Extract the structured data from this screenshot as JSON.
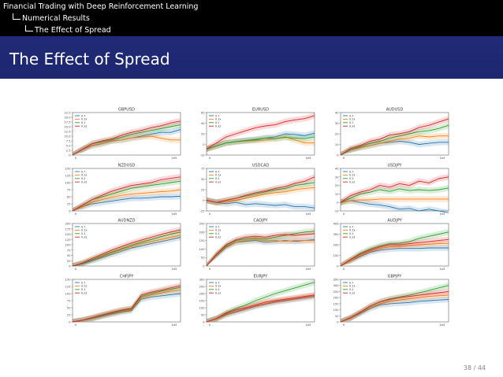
{
  "headline": {
    "presentation": "Financial Trading with  Deep Reinforcement Learning",
    "section": "Numerical Results",
    "subsection": "The Effect of Spread"
  },
  "frame_title": "The Effect of Spread",
  "page_number": "38 / 44",
  "colors": {
    "header_bg": "#000000",
    "title_bg": "#1f2872",
    "text": "#ffffff",
    "series": [
      "#1f77b4",
      "#ff7f0e",
      "#2ca02c",
      "#d62728"
    ]
  },
  "chart_data": [
    {
      "type": "line",
      "title": "GBPUSD",
      "legend_position": "top-left",
      "legend": [
        "0.7",
        "0.1x",
        "0.1",
        "0.x2"
      ],
      "x_tick_labels": [
        "0",
        "1e5"
      ],
      "ylim": [
        0,
        22.5
      ],
      "y_tick_labels": [
        "22.5",
        "20.0",
        "17.5",
        "15.0",
        "12.5",
        "10.0",
        "7.5",
        "5.0",
        "2.5",
        "0"
      ],
      "series": [
        {
          "values": [
            0,
            3,
            5,
            6,
            7.5,
            8,
            9,
            10,
            11,
            12,
            12,
            13.5
          ]
        },
        {
          "values": [
            0,
            3,
            5,
            6,
            7.5,
            8,
            9,
            9.5,
            10,
            9,
            8,
            8
          ]
        },
        {
          "values": [
            0,
            3,
            6,
            7,
            8,
            9.5,
            11,
            12,
            13,
            14,
            15,
            16
          ]
        },
        {
          "values": [
            0,
            3,
            6,
            7.5,
            8.5,
            10.5,
            12,
            13,
            14.5,
            15.5,
            17,
            18
          ]
        }
      ]
    },
    {
      "type": "line",
      "title": "EURUSD",
      "legend_position": "top-left",
      "legend": [
        "0.7",
        "0.1x",
        "0.1",
        "0.x2"
      ],
      "x_tick_labels": [
        "0",
        "1e5"
      ],
      "ylim": [
        -10,
        60
      ],
      "y_tick_labels": [
        "60",
        "40",
        "20",
        "0",
        "-10"
      ],
      "series": [
        {
          "values": [
            0,
            5,
            10,
            12,
            14,
            16,
            18,
            20,
            25,
            24,
            22,
            26
          ]
        },
        {
          "values": [
            0,
            5,
            10,
            12,
            13,
            14,
            15,
            17,
            20,
            15,
            10,
            10
          ]
        },
        {
          "values": [
            0,
            5,
            10,
            12,
            14,
            15,
            18,
            17,
            19,
            18,
            17,
            20
          ]
        },
        {
          "values": [
            0,
            10,
            20,
            25,
            30,
            35,
            38,
            40,
            45,
            48,
            50,
            55
          ]
        }
      ]
    },
    {
      "type": "line",
      "title": "AUDUSD",
      "legend_position": "top-left",
      "legend": [
        "0.7",
        "0.1x",
        "0.1",
        "0.x2"
      ],
      "x_tick_labels": [
        "0",
        "1e5"
      ],
      "ylim": [
        0,
        40
      ],
      "y_tick_labels": [
        "40",
        "30",
        "20",
        "10",
        "0"
      ],
      "series": [
        {
          "values": [
            0,
            5,
            7,
            9,
            11,
            12,
            13,
            12,
            10,
            11,
            12,
            12
          ]
        },
        {
          "values": [
            0,
            5,
            7,
            9,
            11,
            13,
            15,
            16,
            18,
            17,
            18,
            18
          ]
        },
        {
          "values": [
            0,
            5,
            8,
            11,
            13,
            16,
            18,
            20,
            22,
            23,
            25,
            28
          ]
        },
        {
          "values": [
            0,
            6,
            9,
            13,
            15,
            19,
            20,
            22,
            26,
            28,
            31,
            34
          ]
        }
      ]
    },
    {
      "type": "line",
      "title": "NZDUSD",
      "legend_position": "top-left",
      "legend": [
        "0.7",
        "0.1x",
        "0.1",
        "0.x2"
      ],
      "x_tick_labels": [
        "0",
        "1e5"
      ],
      "ylim": [
        0,
        150
      ],
      "y_tick_labels": [
        "150",
        "125",
        "100",
        "75",
        "50",
        "25",
        "0"
      ],
      "series": [
        {
          "values": [
            0,
            15,
            25,
            30,
            35,
            40,
            45,
            45,
            47,
            50,
            50,
            52
          ]
        },
        {
          "values": [
            0,
            15,
            30,
            40,
            48,
            55,
            60,
            62,
            65,
            68,
            70,
            75
          ]
        },
        {
          "values": [
            0,
            20,
            40,
            50,
            60,
            70,
            80,
            85,
            90,
            95,
            100,
            105
          ]
        },
        {
          "values": [
            0,
            20,
            40,
            55,
            70,
            80,
            90,
            95,
            100,
            110,
            115,
            120
          ]
        }
      ]
    },
    {
      "type": "line",
      "title": "USDCAD",
      "legend_position": "top-left",
      "legend": [
        "0.7",
        "0.1x",
        "0.1",
        "0.x2"
      ],
      "x_tick_labels": [
        "0",
        "1e5"
      ],
      "ylim": [
        -25,
        75
      ],
      "y_tick_labels": [
        "75",
        "50",
        "25",
        "0",
        "-25"
      ],
      "series": [
        {
          "values": [
            0,
            -5,
            -8,
            -5,
            -10,
            -8,
            -10,
            -12,
            -10,
            -15,
            -15,
            -18
          ]
        },
        {
          "values": [
            0,
            -5,
            -3,
            0,
            5,
            10,
            15,
            18,
            20,
            25,
            28,
            30
          ]
        },
        {
          "values": [
            0,
            -5,
            0,
            5,
            10,
            15,
            20,
            25,
            28,
            35,
            38,
            42
          ]
        },
        {
          "values": [
            0,
            -5,
            0,
            5,
            12,
            18,
            22,
            28,
            32,
            40,
            45,
            55
          ]
        }
      ]
    },
    {
      "type": "line",
      "title": "USDJPY",
      "legend_position": "top-left",
      "legend": [
        "0.7",
        "0.1x",
        "0.1",
        "0.x2"
      ],
      "x_tick_labels": [
        "0",
        "1e5"
      ],
      "ylim": [
        -10,
        40
      ],
      "y_tick_labels": [
        "40",
        "30",
        "20",
        "10",
        "0",
        "-10"
      ],
      "series": [
        {
          "values": [
            0,
            2,
            0,
            -2,
            -3,
            -5,
            -8,
            -7,
            -10,
            -8,
            -10,
            -12
          ]
        },
        {
          "values": [
            0,
            2,
            3,
            3,
            4,
            4,
            4,
            4,
            4,
            4,
            4,
            4
          ]
        },
        {
          "values": [
            0,
            5,
            10,
            12,
            15,
            13,
            16,
            14,
            15,
            14,
            15,
            17
          ]
        },
        {
          "values": [
            0,
            8,
            12,
            15,
            20,
            18,
            22,
            20,
            25,
            23,
            28,
            30
          ]
        }
      ]
    },
    {
      "type": "line",
      "title": "AUDNZD",
      "legend_position": "top-left",
      "legend": [
        "0.7",
        "0.1x",
        "0.1",
        "0.x2"
      ],
      "x_tick_labels": [
        "0",
        "1e5"
      ],
      "ylim": [
        0,
        200
      ],
      "y_tick_labels": [
        "200",
        "175",
        "150",
        "125",
        "100",
        "75",
        "50",
        "25",
        "0"
      ],
      "series": [
        {
          "values": [
            0,
            10,
            25,
            40,
            55,
            70,
            85,
            95,
            105,
            115,
            125,
            135
          ]
        },
        {
          "values": [
            0,
            12,
            30,
            45,
            62,
            78,
            92,
            105,
            115,
            125,
            135,
            145
          ]
        },
        {
          "values": [
            0,
            12,
            30,
            48,
            66,
            82,
            98,
            112,
            125,
            138,
            150,
            160
          ]
        },
        {
          "values": [
            0,
            15,
            35,
            55,
            75,
            92,
            108,
            122,
            135,
            148,
            160,
            170
          ]
        }
      ]
    },
    {
      "type": "line",
      "title": "CADJPY",
      "legend_position": "top-left",
      "legend": [
        "0.7",
        "0.1x",
        "0.1",
        "0.x2"
      ],
      "x_tick_labels": [
        "0",
        "1e5"
      ],
      "ylim": [
        0,
        250
      ],
      "y_tick_labels": [
        "250",
        "200",
        "150",
        "100",
        "50",
        "0"
      ],
      "series": [
        {
          "values": [
            0,
            60,
            110,
            140,
            145,
            150,
            140,
            145,
            150,
            145,
            150,
            155
          ]
        },
        {
          "values": [
            0,
            65,
            115,
            140,
            150,
            155,
            150,
            150,
            145,
            150,
            150,
            150
          ]
        },
        {
          "values": [
            0,
            70,
            120,
            150,
            160,
            165,
            160,
            170,
            180,
            190,
            200,
            205
          ]
        },
        {
          "values": [
            0,
            70,
            125,
            155,
            170,
            175,
            170,
            180,
            185,
            180,
            185,
            190
          ]
        }
      ]
    },
    {
      "type": "line",
      "title": "AUDJPY",
      "legend_position": "top-left",
      "legend": [
        "0.7",
        "0.1x",
        "0.1",
        "0.x2"
      ],
      "x_tick_labels": [
        "0",
        "1e5"
      ],
      "ylim": [
        0,
        400
      ],
      "y_tick_labels": [
        "400",
        "300",
        "200",
        "100",
        "0"
      ],
      "series": [
        {
          "values": [
            0,
            50,
            90,
            130,
            150,
            160,
            165,
            165,
            165,
            170,
            170,
            170
          ]
        },
        {
          "values": [
            0,
            50,
            100,
            140,
            165,
            180,
            185,
            195,
            200,
            205,
            210,
            210
          ]
        },
        {
          "values": [
            0,
            60,
            120,
            160,
            190,
            210,
            215,
            230,
            260,
            280,
            300,
            320
          ]
        },
        {
          "values": [
            0,
            60,
            110,
            150,
            180,
            200,
            200,
            210,
            220,
            230,
            240,
            250
          ]
        }
      ]
    },
    {
      "type": "line",
      "title": "CHFJPY",
      "legend_position": "top-left",
      "legend": [
        "0.7",
        "0.1x",
        "0.1",
        "0.x2"
      ],
      "x_tick_labels": [
        "0",
        "1e5"
      ],
      "ylim": [
        0,
        150
      ],
      "y_tick_labels": [
        "150",
        "125",
        "100",
        "75",
        "50",
        "25",
        "0"
      ],
      "series": [
        {
          "values": [
            0,
            5,
            12,
            20,
            28,
            35,
            40,
            80,
            88,
            92,
            96,
            100
          ]
        },
        {
          "values": [
            0,
            5,
            13,
            22,
            30,
            38,
            43,
            85,
            95,
            102,
            108,
            112
          ]
        },
        {
          "values": [
            0,
            6,
            14,
            23,
            32,
            40,
            46,
            90,
            100,
            108,
            115,
            122
          ]
        },
        {
          "values": [
            0,
            6,
            15,
            25,
            34,
            42,
            48,
            95,
            105,
            112,
            120,
            128
          ]
        }
      ]
    },
    {
      "type": "line",
      "title": "EURJPY",
      "legend_position": "top-left",
      "legend": [
        "0.7",
        "0.1x",
        "0.1",
        "0.x2"
      ],
      "x_tick_labels": [
        "0",
        "1e5"
      ],
      "ylim": [
        0,
        300
      ],
      "y_tick_labels": [
        "300",
        "250",
        "200",
        "150",
        "100",
        "50",
        "0"
      ],
      "series": [
        {
          "values": [
            0,
            20,
            50,
            70,
            90,
            110,
            125,
            140,
            150,
            160,
            170,
            180
          ]
        },
        {
          "values": [
            0,
            20,
            55,
            75,
            95,
            115,
            130,
            145,
            155,
            165,
            175,
            185
          ]
        },
        {
          "values": [
            0,
            25,
            65,
            95,
            120,
            150,
            175,
            200,
            220,
            240,
            260,
            280
          ]
        },
        {
          "values": [
            0,
            25,
            60,
            85,
            100,
            120,
            140,
            150,
            160,
            170,
            180,
            190
          ]
        }
      ]
    },
    {
      "type": "line",
      "title": "GBPJPY",
      "legend_position": "top-left",
      "legend": [
        "0.7",
        "0.1x",
        "0.1",
        "0.x2"
      ],
      "x_tick_labels": [
        "0",
        "1e5"
      ],
      "ylim": [
        0,
        350
      ],
      "y_tick_labels": [
        "350",
        "300",
        "250",
        "200",
        "150",
        "100",
        "50",
        "0"
      ],
      "series": [
        {
          "values": [
            0,
            30,
            70,
            110,
            140,
            150,
            155,
            160,
            170,
            175,
            180,
            185
          ]
        },
        {
          "values": [
            0,
            30,
            75,
            120,
            150,
            170,
            180,
            190,
            200,
            210,
            215,
            220
          ]
        },
        {
          "values": [
            0,
            35,
            80,
            130,
            165,
            190,
            205,
            220,
            240,
            260,
            280,
            300
          ]
        },
        {
          "values": [
            0,
            35,
            80,
            130,
            165,
            185,
            200,
            210,
            220,
            230,
            240,
            250
          ]
        }
      ]
    }
  ]
}
